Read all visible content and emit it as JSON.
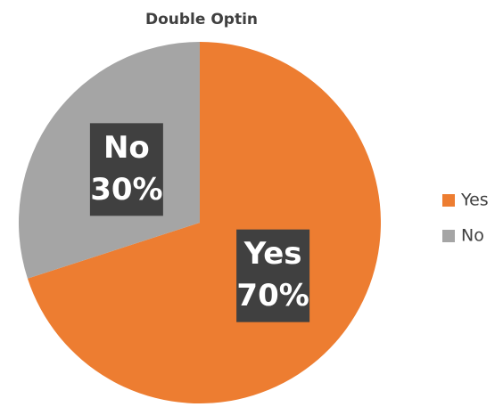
{
  "chart_data": {
    "type": "pie",
    "title": "Double Optin",
    "categories": [
      "Yes",
      "No"
    ],
    "values": [
      70,
      30
    ],
    "value_labels": [
      "70%",
      "30%"
    ],
    "colors": [
      "#ED7D31",
      "#A5A5A5"
    ],
    "legend": "right"
  }
}
